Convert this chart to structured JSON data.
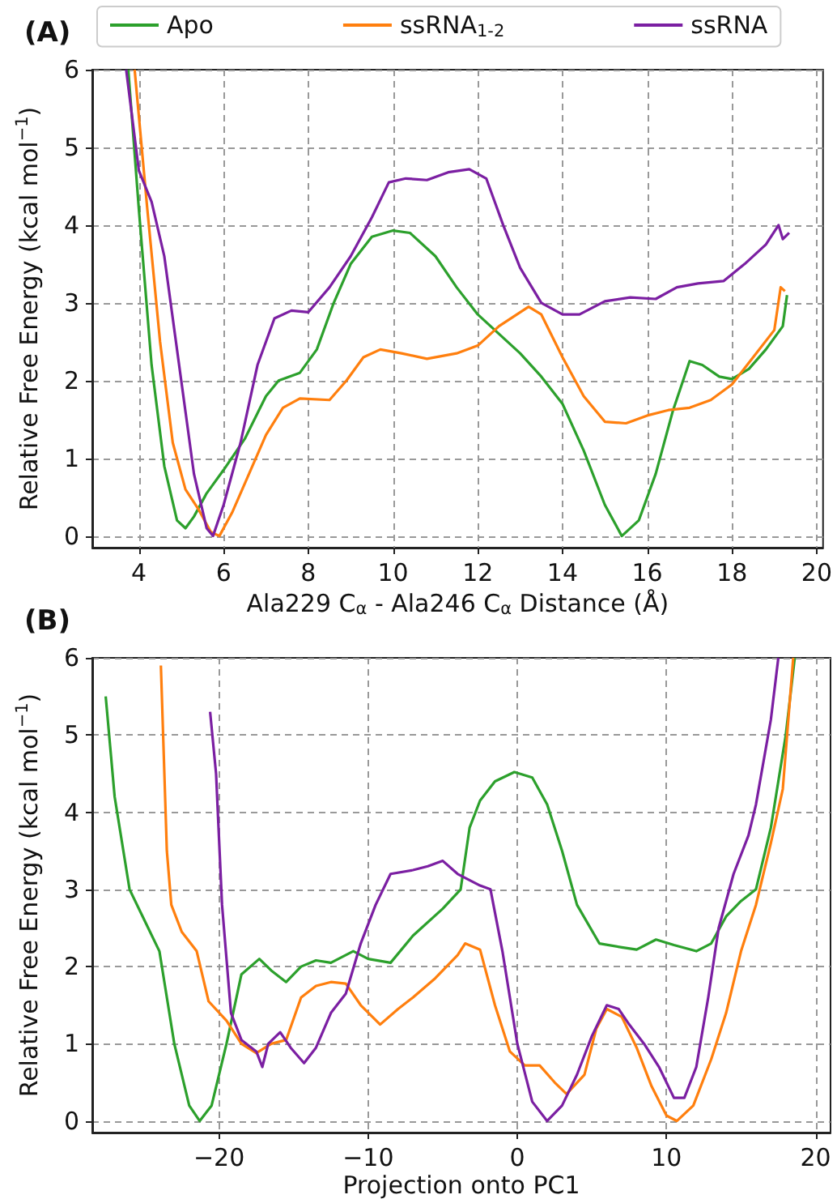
{
  "chart_data": [
    {
      "type": "line",
      "title": "(A)",
      "xlabel": "Ala229 C$_{α}$ - Ala246 C$_{α}$ Distance (Å)",
      "ylabel": "Relative Free Energy (kcal mol$^{−1}$)",
      "xlim": [
        2.9,
        20.15
      ],
      "ylim": [
        -0.15,
        6
      ],
      "xticks": [
        4,
        6,
        8,
        10,
        12,
        14,
        16,
        18,
        20
      ],
      "yticks": [
        0,
        1,
        2,
        3,
        4,
        5,
        6
      ],
      "grid": true,
      "legend": "top",
      "marker": "none",
      "line_style": "solid",
      "series": [
        {
          "name": "Apo",
          "color": "#2ca02c",
          "x": [
            3.75,
            4.0,
            4.3,
            4.6,
            4.9,
            5.1,
            5.3,
            5.6,
            6,
            6.5,
            7,
            7.3,
            7.8,
            8.2,
            8.6,
            9,
            9.5,
            10,
            10.4,
            11,
            11.5,
            12,
            12.5,
            13,
            13.5,
            14,
            14.5,
            15,
            15.4,
            15.8,
            16.2,
            16.6,
            17,
            17.3,
            17.7,
            18,
            18.4,
            18.8,
            19.2,
            19.3
          ],
          "values": [
            6,
            4.2,
            2.2,
            0.9,
            0.2,
            0.1,
            0.25,
            0.55,
            0.85,
            1.25,
            1.8,
            2.0,
            2.1,
            2.4,
            3.0,
            3.5,
            3.85,
            3.93,
            3.9,
            3.6,
            3.2,
            2.85,
            2.6,
            2.35,
            2.05,
            1.7,
            1.1,
            0.4,
            0.0,
            0.2,
            0.8,
            1.6,
            2.25,
            2.2,
            2.05,
            2.02,
            2.15,
            2.4,
            2.7,
            3.1
          ]
        },
        {
          "name": "ssRNA$_{1-2}$",
          "color": "#ff7f0e",
          "x": [
            3.9,
            4.2,
            4.5,
            4.8,
            5.1,
            5.4,
            5.7,
            5.9,
            6.2,
            6.6,
            7,
            7.4,
            7.8,
            8.5,
            8.9,
            9.3,
            9.7,
            10.2,
            10.8,
            11.5,
            12,
            12.5,
            13.2,
            13.5,
            14,
            14.5,
            15,
            15.5,
            16,
            16.5,
            17,
            17.5,
            18,
            18.5,
            19,
            19.15,
            19.25
          ],
          "values": [
            6,
            4.2,
            2.5,
            1.2,
            0.6,
            0.35,
            0.05,
            0.0,
            0.3,
            0.8,
            1.3,
            1.65,
            1.77,
            1.75,
            2.0,
            2.3,
            2.4,
            2.35,
            2.28,
            2.35,
            2.45,
            2.7,
            2.95,
            2.85,
            2.3,
            1.8,
            1.47,
            1.45,
            1.55,
            1.62,
            1.65,
            1.75,
            1.95,
            2.3,
            2.65,
            3.2,
            3.15
          ]
        },
        {
          "name": "ssRNA",
          "color": "#7b1fa2",
          "x": [
            3.7,
            4.0,
            4.3,
            4.6,
            5.0,
            5.3,
            5.6,
            5.75,
            6.0,
            6.4,
            6.8,
            7.2,
            7.6,
            8.0,
            8.5,
            9,
            9.5,
            9.9,
            10.3,
            10.8,
            11.3,
            11.8,
            12.2,
            12.6,
            13,
            13.5,
            14,
            14.4,
            15,
            15.6,
            16.2,
            16.7,
            17.2,
            17.8,
            18.3,
            18.8,
            19.1,
            19.2,
            19.35
          ],
          "values": [
            6,
            4.7,
            4.3,
            3.6,
            2.0,
            0.8,
            0.1,
            0.0,
            0.4,
            1.2,
            2.2,
            2.8,
            2.9,
            2.88,
            3.2,
            3.6,
            4.1,
            4.55,
            4.6,
            4.58,
            4.68,
            4.72,
            4.6,
            4.0,
            3.45,
            3.0,
            2.85,
            2.85,
            3.02,
            3.07,
            3.05,
            3.2,
            3.25,
            3.28,
            3.5,
            3.75,
            4.0,
            3.82,
            3.9
          ]
        }
      ]
    },
    {
      "type": "line",
      "title": "(B)",
      "xlabel": "Projection onto PC1",
      "ylabel": "Relative Free Energy (kcal mol$^{−1}$)",
      "xlim": [
        -28.5,
        21
      ],
      "ylim": [
        -0.15,
        6
      ],
      "xticks": [
        {
          "value": -20,
          "label": "−20"
        },
        {
          "value": -10,
          "label": "−10"
        },
        0,
        10,
        20
      ],
      "yticks": [
        0,
        1,
        2,
        3,
        4,
        5,
        6
      ],
      "grid": true,
      "marker": "none",
      "line_style": "solid",
      "series": [
        {
          "color": "#2ca02c",
          "x": [
            -27.6,
            -27,
            -26,
            -25,
            -24,
            -23,
            -22,
            -21.3,
            -20.5,
            -19.5,
            -18.5,
            -17.3,
            -16.5,
            -15.5,
            -14.5,
            -13.5,
            -12.5,
            -11,
            -10,
            -8.5,
            -7,
            -5,
            -3.8,
            -3.2,
            -2.5,
            -1.5,
            -0.2,
            1,
            2,
            3,
            4,
            5.5,
            7,
            8,
            9.3,
            10.5,
            12,
            13,
            14,
            15,
            16,
            17,
            18,
            18.6
          ],
          "values": [
            5.5,
            4.2,
            3.0,
            2.6,
            2.2,
            1.0,
            0.2,
            0.0,
            0.2,
            1.0,
            1.9,
            2.1,
            1.95,
            1.8,
            2.0,
            2.08,
            2.05,
            2.2,
            2.1,
            2.05,
            2.4,
            2.75,
            3.0,
            3.8,
            4.15,
            4.4,
            4.52,
            4.45,
            4.1,
            3.5,
            2.8,
            2.3,
            2.25,
            2.22,
            2.35,
            2.28,
            2.2,
            2.3,
            2.65,
            2.85,
            3.0,
            3.8,
            5.0,
            6
          ]
        },
        {
          "color": "#ff7f0e",
          "x": [
            -23.9,
            -23.5,
            -23.2,
            -22.5,
            -21.5,
            -20.7,
            -19.5,
            -18.5,
            -17.5,
            -16.5,
            -15.5,
            -14.5,
            -13.5,
            -12.5,
            -11.5,
            -10.5,
            -9.2,
            -8,
            -7,
            -5.5,
            -4,
            -3.5,
            -2.5,
            -1.5,
            -0.5,
            0.5,
            1.5,
            2.5,
            3.3,
            4.5,
            5.3,
            6,
            7,
            8,
            9,
            10,
            10.7,
            11.8,
            13,
            14,
            15,
            16,
            17,
            17.8,
            18.5
          ],
          "values": [
            5.9,
            3.5,
            2.8,
            2.45,
            2.2,
            1.55,
            1.3,
            1.0,
            0.88,
            1.0,
            1.05,
            1.6,
            1.75,
            1.8,
            1.78,
            1.5,
            1.25,
            1.45,
            1.6,
            1.85,
            2.15,
            2.3,
            2.22,
            1.5,
            0.9,
            0.72,
            0.72,
            0.5,
            0.35,
            0.6,
            1.2,
            1.45,
            1.35,
            0.95,
            0.45,
            0.07,
            0.0,
            0.2,
            0.8,
            1.4,
            2.2,
            2.8,
            3.6,
            4.3,
            6
          ]
        },
        {
          "color": "#7b1fa2",
          "x": [
            -20.6,
            -20.2,
            -19.8,
            -19.2,
            -18.5,
            -17.5,
            -17.1,
            -16.7,
            -15.9,
            -15.2,
            -14.3,
            -13.5,
            -12.5,
            -11.5,
            -10.5,
            -9.5,
            -8.5,
            -7,
            -6,
            -5,
            -4,
            -2.5,
            -1.8,
            -1,
            0,
            1,
            2,
            3,
            4,
            5,
            6,
            6.8,
            7.5,
            8.5,
            9.5,
            10.5,
            11.2,
            12,
            12.8,
            13.5,
            14.5,
            15.5,
            16,
            17,
            17.5
          ],
          "values": [
            5.3,
            4.5,
            2.8,
            1.4,
            1.05,
            0.9,
            0.7,
            1.0,
            1.15,
            0.95,
            0.75,
            0.95,
            1.4,
            1.65,
            2.3,
            2.8,
            3.2,
            3.25,
            3.3,
            3.37,
            3.2,
            3.05,
            3.0,
            2.2,
            1.0,
            0.25,
            0.0,
            0.2,
            0.6,
            1.1,
            1.5,
            1.45,
            1.25,
            1.0,
            0.7,
            0.3,
            0.3,
            0.7,
            1.6,
            2.5,
            3.2,
            3.7,
            4.1,
            5.2,
            6
          ]
        }
      ]
    }
  ]
}
